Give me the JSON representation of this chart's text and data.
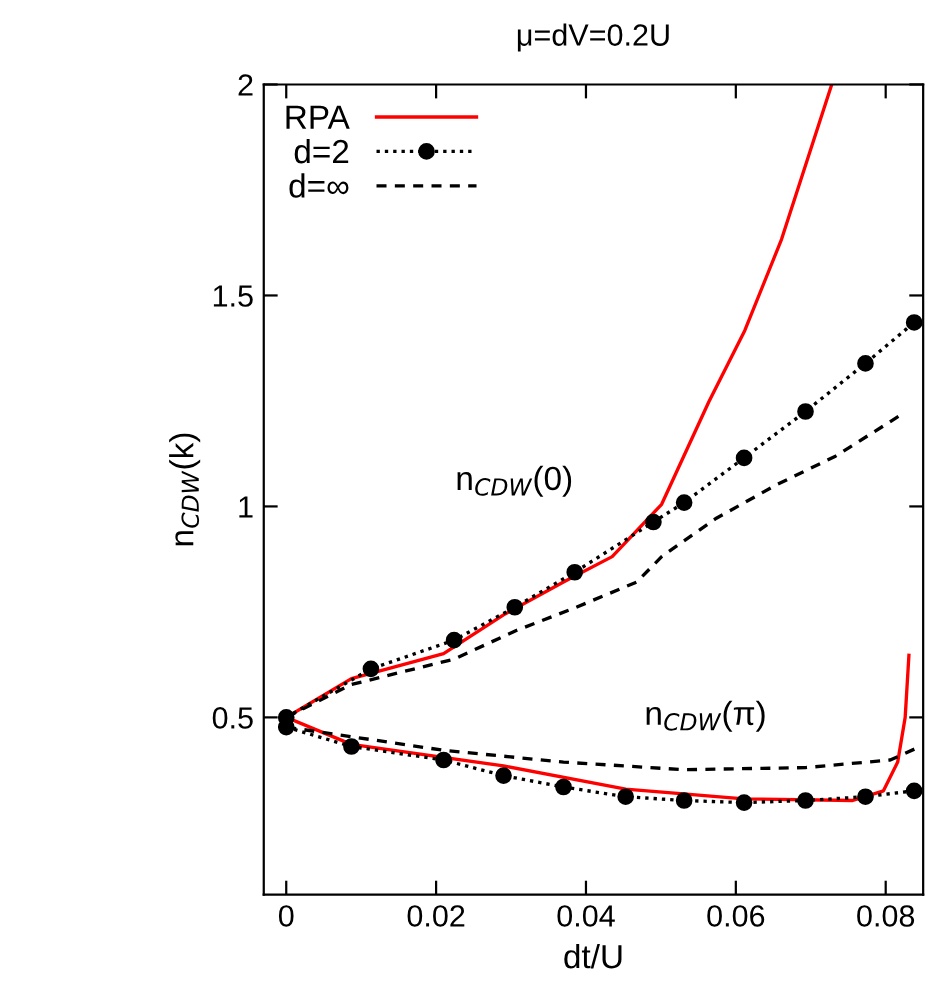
{
  "chart_data": {
    "type": "line",
    "title": "μ=dV=0.2U",
    "xlabel": "dt/U",
    "ylabel": "n$_{CDW}$(k)",
    "xlim": [
      -0.003,
      0.085
    ],
    "ylim": [
      0.08,
      2
    ],
    "xticks": [
      0,
      0.02,
      0.04,
      0.06,
      0.08
    ],
    "yticks": [
      0.5,
      1,
      1.5,
      2
    ],
    "grid": false,
    "legend": "top left",
    "annotations": [
      "n$_{CDW}$(0)",
      "n$_{CDW}$(π)"
    ],
    "series": [
      {
        "name": "RPA",
        "color": "#ff0000",
        "marker": "none",
        "line_style": "solid",
        "x": [
          0,
          0.0087,
          0.021,
          0.029,
          0.037,
          0.0435,
          0.0501,
          0.0564,
          0.0612,
          0.0661,
          0.0728
        ],
        "values": [
          0.5,
          0.592,
          0.651,
          0.743,
          0.821,
          0.881,
          1.005,
          1.248,
          1.417,
          1.633,
          2.0
        ]
      },
      {
        "color": "#ff0000",
        "marker": "none",
        "line_style": "solid",
        "x": [
          0,
          0.0087,
          0.029,
          0.0453,
          0.0611,
          0.0756,
          0.0797,
          0.0816,
          0.0826,
          0.0831
        ],
        "values": [
          0.5,
          0.436,
          0.385,
          0.33,
          0.307,
          0.303,
          0.326,
          0.394,
          0.5,
          0.647
        ]
      },
      {
        "name": "d=2",
        "color": "#000000",
        "marker": "circle",
        "line_style": "dotted",
        "x": [
          0,
          0.0113,
          0.0224,
          0.0305,
          0.0385,
          0.049,
          0.0531,
          0.0611,
          0.0693,
          0.0773,
          0.0838
        ],
        "values": [
          0.5,
          0.615,
          0.683,
          0.761,
          0.844,
          0.963,
          1.009,
          1.115,
          1.225,
          1.339,
          1.436
        ]
      },
      {
        "color": "#000000",
        "marker": "circle",
        "line_style": "dotted",
        "x": [
          0,
          0.0087,
          0.021,
          0.029,
          0.037,
          0.0453,
          0.0531,
          0.0611,
          0.0693,
          0.0773,
          0.0838
        ],
        "values": [
          0.477,
          0.431,
          0.399,
          0.362,
          0.335,
          0.312,
          0.303,
          0.298,
          0.303,
          0.312,
          0.326
        ]
      },
      {
        "name": "d=∞",
        "color": "#000000",
        "marker": "none",
        "line_style": "dashed",
        "x": [
          0,
          0.0087,
          0.0224,
          0.0307,
          0.0387,
          0.0468,
          0.0501,
          0.0574,
          0.0653,
          0.0733,
          0.0823
        ],
        "values": [
          0.5,
          0.578,
          0.638,
          0.706,
          0.761,
          0.821,
          0.881,
          0.972,
          1.05,
          1.119,
          1.22
        ]
      },
      {
        "color": "#000000",
        "marker": "none",
        "line_style": "dashed",
        "x": [
          0,
          0.021,
          0.037,
          0.0531,
          0.0693,
          0.0806,
          0.0841
        ],
        "values": [
          0.477,
          0.422,
          0.394,
          0.376,
          0.381,
          0.399,
          0.427
        ]
      }
    ]
  }
}
